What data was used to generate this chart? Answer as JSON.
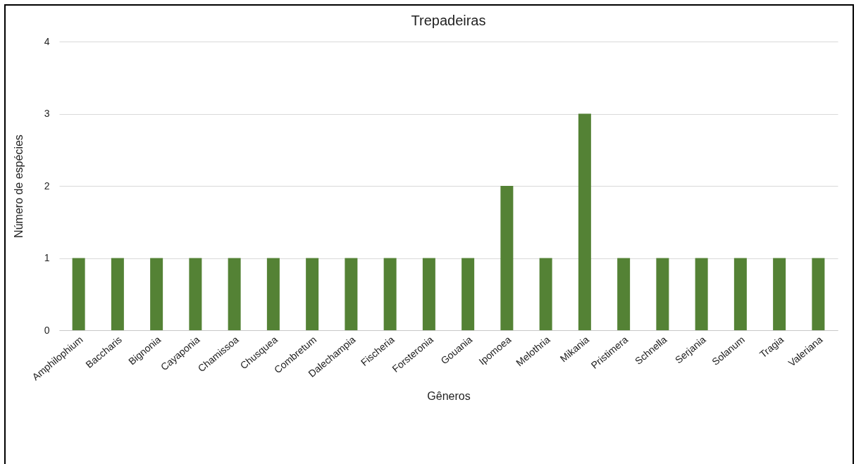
{
  "chart_data": {
    "type": "bar",
    "title": "Trepadeiras",
    "xlabel": "Gêneros",
    "ylabel": "Número de espécies",
    "categories": [
      "Amphilophium",
      "Baccharis",
      "Bignonia",
      "Cayaponia",
      "Chamissoa",
      "Chusquea",
      "Combretum",
      "Dalechampia",
      "Fischeria",
      "Forsteronia",
      "Gouania",
      "Ipomoea",
      "Melothria",
      "Mikania",
      "Pristimera",
      "Schnella",
      "Serjania",
      "Solanum",
      "Tragia",
      "Valeriana"
    ],
    "values": [
      1,
      1,
      1,
      1,
      1,
      1,
      1,
      1,
      1,
      1,
      1,
      2,
      1,
      3,
      1,
      1,
      1,
      1,
      1,
      1
    ],
    "color": "#548235",
    "ylim": [
      0,
      4
    ],
    "yticks": [
      0,
      1,
      2,
      3,
      4
    ],
    "grid": "y"
  }
}
